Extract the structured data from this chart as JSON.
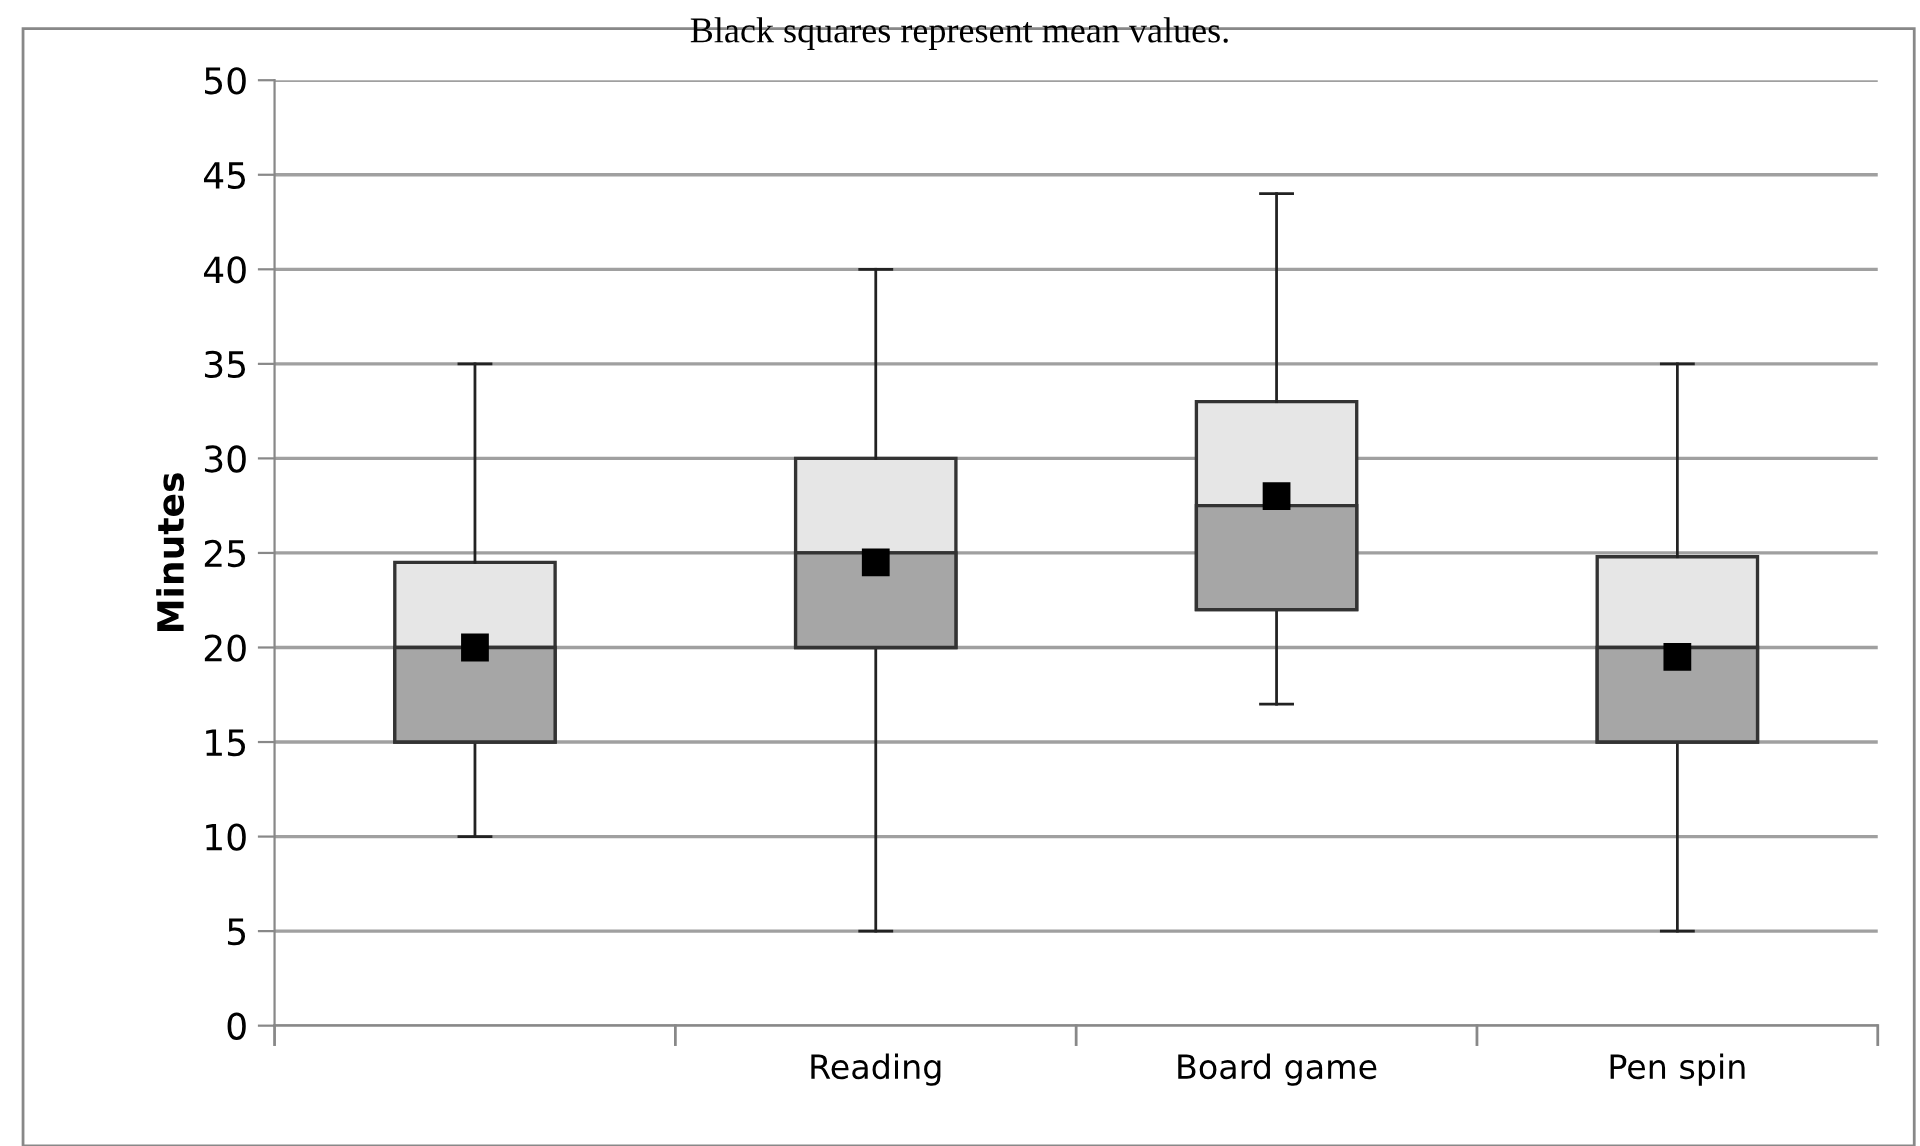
{
  "chart_data": {
    "type": "box",
    "title": "Black squares represent mean values.",
    "ylabel": "Minutes",
    "categories": [
      null,
      "Reading",
      "Board game",
      "Pen spin"
    ],
    "boxes": [
      {
        "low": 10,
        "q1": 15,
        "median": 20,
        "q3": 24.5,
        "high": 35,
        "mean": 20
      },
      {
        "low": 5,
        "q1": 20,
        "median": 25,
        "q3": 30,
        "high": 40,
        "mean": 24.5
      },
      {
        "low": 17,
        "q1": 22,
        "median": 27.5,
        "q3": 33,
        "high": 44,
        "mean": 28
      },
      {
        "low": 5,
        "q1": 15,
        "median": 20,
        "q3": 24.8,
        "high": 35,
        "mean": 19.5
      }
    ],
    "ylim": [
      0,
      50
    ],
    "yticks": [
      0,
      5,
      10,
      15,
      20,
      25,
      30,
      35,
      40,
      45,
      50
    ],
    "grid": "y",
    "marker": "square"
  }
}
